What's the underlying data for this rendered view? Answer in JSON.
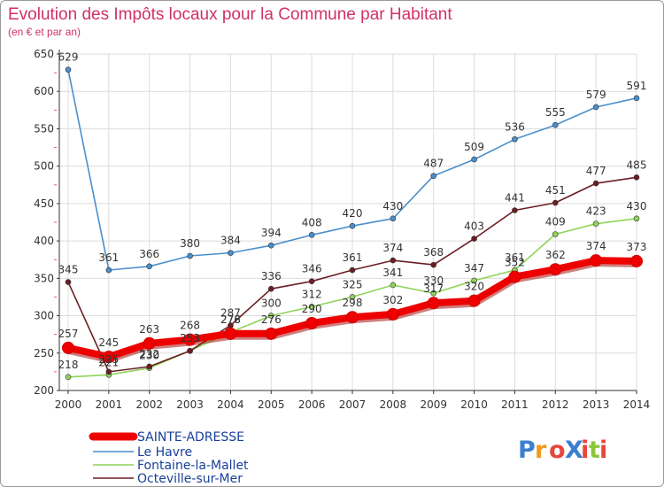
{
  "chart_data": {
    "type": "line",
    "title": "Evolution des Impôts locaux pour la Commune par Habitant",
    "subtitle": "(en € et par an)",
    "x": [
      "2000",
      "2001",
      "2002",
      "2003",
      "2004",
      "2005",
      "2006",
      "2007",
      "2008",
      "2009",
      "2010",
      "2011",
      "2012",
      "2013",
      "2014"
    ],
    "ylim": [
      200,
      650
    ],
    "yticks": [
      200,
      250,
      300,
      350,
      400,
      450,
      500,
      550,
      600,
      650
    ],
    "grid": true,
    "legend_position": "bottom-left",
    "series": [
      {
        "name": "SAINTE-ADRESSE",
        "color": "#ee0000",
        "values": [
          257,
          245,
          263,
          268,
          276,
          276,
          290,
          298,
          302,
          317,
          320,
          352,
          362,
          374,
          373
        ]
      },
      {
        "name": "Le Havre",
        "color": "#4a8fcc",
        "values": [
          629,
          361,
          366,
          380,
          384,
          394,
          408,
          420,
          430,
          487,
          509,
          536,
          555,
          579,
          591
        ]
      },
      {
        "name": "Fontaine-la-Mallet",
        "color": "#8fd45a",
        "values": [
          218,
          221,
          230,
          253,
          278,
          300,
          312,
          325,
          341,
          330,
          347,
          361,
          409,
          423,
          430
        ]
      },
      {
        "name": "Octeville-sur-Mer",
        "color": "#6b1e24",
        "values": [
          345,
          225,
          232,
          253,
          287,
          336,
          346,
          361,
          374,
          368,
          403,
          441,
          451,
          477,
          485
        ]
      }
    ]
  },
  "logo": {
    "text": "ProXiti"
  }
}
